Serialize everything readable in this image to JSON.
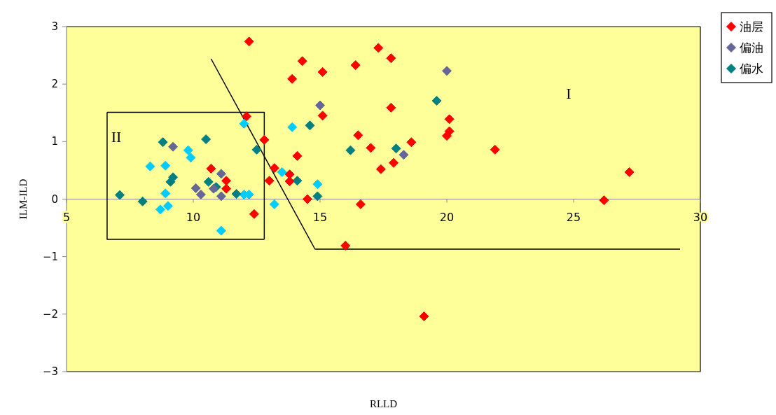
{
  "chart_data": {
    "type": "scatter",
    "xlabel": "RLLD",
    "ylabel": "ILM-ILD",
    "xlim": [
      5,
      30
    ],
    "ylim": [
      -3,
      3
    ],
    "xticks": [
      5,
      10,
      15,
      20,
      25,
      30
    ],
    "yticks": [
      -3,
      -2,
      -1,
      0,
      1,
      2,
      3
    ],
    "marker": "diamond",
    "grid": false,
    "legend": "top right",
    "annotations": [
      "I",
      "II"
    ],
    "series": [
      {
        "name": "油层",
        "color": "#ff0000",
        "x": [
          12.2,
          12.1,
          12.8,
          10.7,
          11.3,
          11.3,
          12.4,
          14.3,
          15.1,
          13.9,
          16.4,
          17.3,
          17.8,
          17.8,
          15.1,
          20.1,
          20.1,
          20.0,
          16.5,
          17.0,
          18.6,
          17.9,
          17.4,
          14.1,
          13.2,
          13.8,
          13.8,
          13.0,
          14.5,
          16.6,
          16.0,
          21.9,
          27.2,
          26.2,
          19.1
        ],
        "values": [
          2.74,
          1.44,
          1.03,
          0.53,
          0.32,
          0.18,
          -0.26,
          2.4,
          2.21,
          2.09,
          2.33,
          2.63,
          2.45,
          1.59,
          1.45,
          1.39,
          1.18,
          1.1,
          1.11,
          0.89,
          0.99,
          0.63,
          0.52,
          0.75,
          0.54,
          0.43,
          0.31,
          0.32,
          0.0,
          -0.09,
          -0.81,
          0.86,
          0.47,
          -0.02,
          -2.04
        ]
      },
      {
        "name": "偏油",
        "color": "#666699",
        "x": [
          9.2,
          10.1,
          10.3,
          11.1,
          11.1,
          10.8,
          15.0,
          18.3,
          20.0
        ],
        "values": [
          0.91,
          0.19,
          0.08,
          0.44,
          0.05,
          0.18,
          1.63,
          0.77,
          2.23
        ]
      },
      {
        "name": "偏水",
        "color": "#008080",
        "x": [
          7.1,
          8.0,
          8.8,
          9.1,
          9.2,
          10.5,
          10.6,
          10.9,
          11.7,
          12.5,
          14.6,
          14.1,
          14.9,
          16.2,
          18.0,
          19.6
        ],
        "values": [
          0.07,
          -0.04,
          0.99,
          0.3,
          0.38,
          1.04,
          0.3,
          0.21,
          0.09,
          0.86,
          1.28,
          0.32,
          0.05,
          0.85,
          0.88,
          1.71
        ]
      },
      {
        "color": "#00ccff",
        "x": [
          8.3,
          8.9,
          8.9,
          9.0,
          8.7,
          9.8,
          9.9,
          11.1,
          12.0,
          12.2,
          12.0,
          13.5,
          13.2,
          13.9,
          14.9
        ],
        "values": [
          0.57,
          0.58,
          0.1,
          -0.12,
          -0.18,
          0.85,
          0.72,
          -0.55,
          0.08,
          0.08,
          1.31,
          0.47,
          -0.09,
          1.25,
          0.26
        ]
      },
      {
        "type": "line",
        "marker": "none",
        "color": "#000000",
        "x": [
          10.7,
          14.8,
          29.2
        ],
        "values": [
          2.44,
          -0.87,
          -0.87
        ]
      },
      {
        "type": "line",
        "marker": "none",
        "color": "#000000",
        "x": [
          6.6,
          12.8,
          12.8
        ],
        "values": [
          1.51,
          1.51,
          -0.7
        ]
      },
      {
        "type": "line",
        "marker": "none",
        "color": "#000000",
        "x": [
          6.6,
          6.6,
          12.8
        ],
        "values": [
          1.51,
          -0.7,
          -0.7
        ]
      }
    ]
  }
}
